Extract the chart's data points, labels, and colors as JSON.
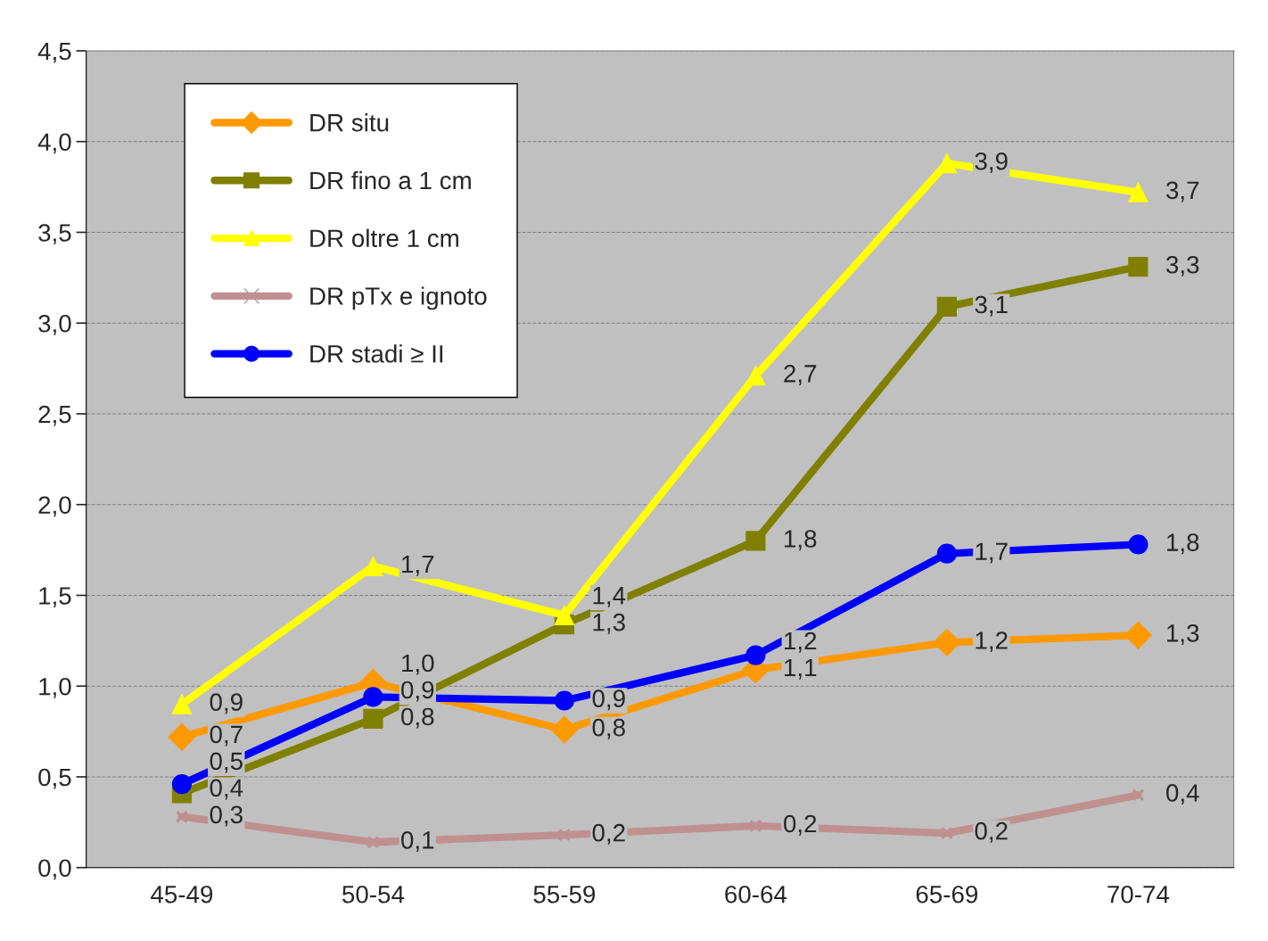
{
  "chart_data": {
    "type": "line",
    "categories": [
      "45-49",
      "50-54",
      "55-59",
      "60-64",
      "65-69",
      "70-74"
    ],
    "series": [
      {
        "name": "DR situ",
        "color": "#ff9900",
        "marker": "diamond",
        "values": [
          0.72,
          1.02,
          0.76,
          1.09,
          1.24,
          1.28
        ],
        "value_labels": [
          "0,7",
          "1,0",
          "0,8",
          "1,1",
          "1,2",
          "1,3"
        ]
      },
      {
        "name": "DR fino a 1 cm",
        "color": "#808000",
        "marker": "square",
        "values": [
          0.41,
          0.82,
          1.34,
          1.8,
          3.09,
          3.31
        ],
        "value_labels": [
          "0,4",
          "0,8",
          "1,3",
          "1,8",
          "3,1",
          "3,3"
        ]
      },
      {
        "name": "DR oltre 1 cm",
        "color": "#ffff00",
        "marker": "triangle",
        "values": [
          0.9,
          1.66,
          1.39,
          2.71,
          3.88,
          3.72
        ],
        "value_labels": [
          "0,9",
          "1,7",
          "1,4",
          "2,7",
          "3,9",
          "3,7"
        ]
      },
      {
        "name": "DR pTx e ignoto",
        "color": "#c09090",
        "marker": "cross",
        "values": [
          0.28,
          0.14,
          0.18,
          0.23,
          0.19,
          0.4
        ],
        "value_labels": [
          "0,3",
          "0,1",
          "0,2",
          "0,2",
          "0,2",
          "0,4"
        ]
      },
      {
        "name": "DR stadi ≥ II",
        "color": "#0000ff",
        "marker": "circle",
        "values": [
          0.46,
          0.94,
          0.92,
          1.17,
          1.73,
          1.78
        ],
        "value_labels": [
          "0,5",
          "0,9",
          "0,9",
          "1,2",
          "1,7",
          "1,8"
        ]
      }
    ],
    "ylim": [
      0,
      4.5
    ],
    "yticks": [
      {
        "value": 0,
        "label": "0,0"
      },
      {
        "value": 0.5,
        "label": "0,5"
      },
      {
        "value": 1,
        "label": "1,0"
      },
      {
        "value": 1.5,
        "label": "1,5"
      },
      {
        "value": 2,
        "label": "2,0"
      },
      {
        "value": 2.5,
        "label": "2,5"
      },
      {
        "value": 3,
        "label": "3,0"
      },
      {
        "value": 3.5,
        "label": "3,5"
      },
      {
        "value": 4,
        "label": "4,0"
      },
      {
        "value": 4.5,
        "label": "4,5"
      }
    ],
    "grid": "y",
    "legend": "top left",
    "line_style": "solid"
  }
}
